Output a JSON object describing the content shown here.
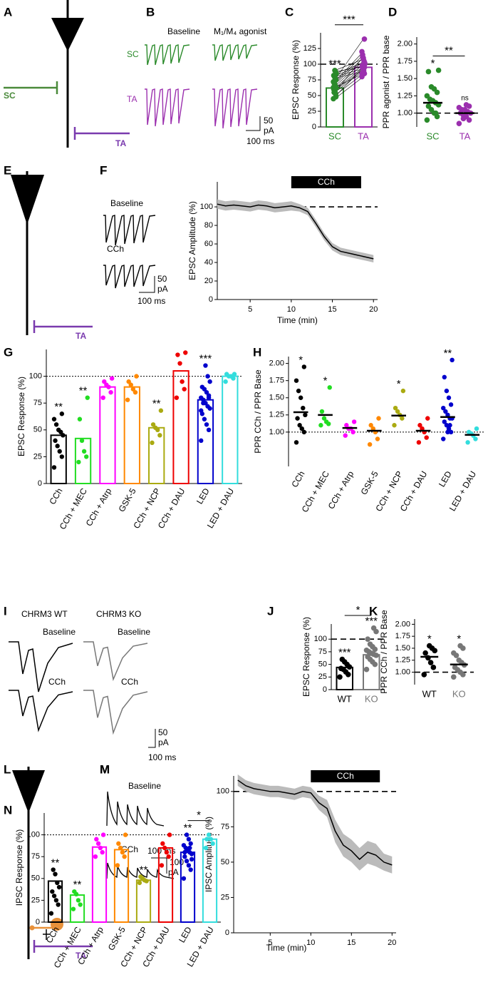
{
  "illustrations": {
    "A": {
      "panel": "A",
      "labels": [
        "SC",
        "TA"
      ]
    },
    "B": {
      "panel": "B",
      "conditions": [
        "Baseline",
        "M₁/M₄ agonist"
      ],
      "rows": [
        "SC",
        "TA"
      ],
      "scale": [
        "50",
        "pA",
        "100 ms"
      ]
    },
    "E": {
      "panel": "E",
      "labels": [
        "TA"
      ]
    },
    "F": {
      "panel": "F",
      "conditions": [
        "Baseline",
        "CCh"
      ],
      "scale": [
        "50",
        "pA",
        "100 ms"
      ]
    },
    "I": {
      "panel": "I",
      "columns": [
        "CHRM3 WT",
        "CHRM3 KO"
      ],
      "conditions": [
        "Baseline",
        "Baseline",
        "CCh",
        "CCh"
      ],
      "scale": [
        "50",
        "pA",
        "100 ms"
      ]
    },
    "L": {
      "panel": "L",
      "labels": [
        "TA"
      ]
    },
    "M": {
      "panel": "M",
      "conditions": [
        "Baseline",
        "CCh"
      ],
      "scale": [
        "100 ms",
        "100",
        "pA"
      ]
    }
  },
  "chart_data": [
    {
      "type": "bar",
      "panel": "C",
      "ylabel": "EPSC Response (%)",
      "categories": [
        "SC",
        "TA"
      ],
      "colors": [
        "#2a8a2a",
        "#9b2fae"
      ],
      "values": [
        62,
        95
      ],
      "ylim": [
        0,
        150
      ],
      "yticks": [
        0,
        25,
        50,
        75,
        100,
        125
      ],
      "reference_line": 100,
      "paired": true,
      "points": [
        [
          45,
          50,
          55,
          58,
          60,
          62,
          65,
          68,
          70,
          72,
          75,
          78,
          80,
          82,
          85,
          88,
          90,
          55,
          63,
          48
        ],
        [
          80,
          85,
          90,
          92,
          95,
          100,
          105,
          110,
          115,
          120,
          140,
          88,
          93,
          98,
          102,
          96,
          108,
          112,
          85,
          95
        ]
      ],
      "annotations": [
        "***",
        null
      ],
      "bracket": {
        "between": [
          0,
          1
        ],
        "label": "***"
      }
    },
    {
      "type": "strip",
      "panel": "D",
      "ylabel": "PPR agonist / PPR base",
      "categories": [
        "SC",
        "TA"
      ],
      "colors": [
        "#2a8a2a",
        "#9b2fae"
      ],
      "values": [
        1.15,
        1.0
      ],
      "ylim": [
        0.8,
        2.1
      ],
      "yticks": [
        {
          "value": 1,
          "label": "1.00"
        },
        {
          "value": 1.25,
          "label": "1.25"
        },
        {
          "value": 1.5,
          "label": "1.50"
        },
        {
          "value": 1.75,
          "label": "1.75"
        },
        {
          "value": 2,
          "label": "2.00"
        }
      ],
      "reference_line": 1,
      "points": [
        [
          0.9,
          0.95,
          1.0,
          1.05,
          1.1,
          1.12,
          1.15,
          1.18,
          1.2,
          1.25,
          1.3,
          1.35,
          1.38,
          1.6,
          1.62,
          1.0
        ],
        [
          0.85,
          0.9,
          0.95,
          0.97,
          1.0,
          1.0,
          1.02,
          1.05,
          1.05,
          1.08,
          1.1,
          1.12,
          0.92
        ]
      ],
      "annotations": [
        "*",
        "ns"
      ],
      "bracket": {
        "between": [
          0,
          1
        ],
        "label": "**"
      }
    },
    {
      "type": "line",
      "panel": "F",
      "ylabel": "EPSC Amplitude (%)",
      "xlabel": "Time (min)",
      "x": [
        1,
        2,
        3,
        4,
        5,
        6,
        7,
        8,
        9,
        10,
        11,
        12,
        13,
        14,
        15,
        16,
        17,
        18,
        19,
        20
      ],
      "series": [
        {
          "color": "#000000",
          "values": [
            103,
            101,
            102,
            101,
            100,
            102,
            101,
            99,
            100,
            101,
            99,
            95,
            82,
            68,
            57,
            52,
            50,
            48,
            46,
            44
          ],
          "error": [
            5,
            5,
            5,
            5,
            5,
            5,
            5,
            5,
            5,
            5,
            4,
            4,
            4,
            4,
            4,
            4,
            4,
            4,
            4,
            4
          ]
        }
      ],
      "xlim": [
        1,
        20.5
      ],
      "xticks": [
        5,
        10,
        15,
        20
      ],
      "ylim": [
        0,
        127
      ],
      "yticks": [
        0,
        20,
        40,
        60,
        80,
        100
      ],
      "reference_line": 100,
      "shaded_interval": {
        "label": "CCh",
        "range": [
          10,
          18.5
        ]
      }
    },
    {
      "type": "bar",
      "panel": "G",
      "ylabel": "EPSC Response (%)",
      "categories": [
        "CCh",
        "CCh + MEC",
        "CCh + Atrp",
        "GSK-5",
        "CCh + NCP",
        "CCh + DAU",
        "LED",
        "LED + DAU"
      ],
      "colors": [
        "#000000",
        "#22dd22",
        "#ff00ff",
        "#ff8800",
        "#aaaa11",
        "#ee0000",
        "#0000cc",
        "#33dddd"
      ],
      "values": [
        45,
        42,
        90,
        90,
        52,
        105,
        78,
        100
      ],
      "ylim": [
        0,
        125
      ],
      "yticks": [
        0,
        25,
        50,
        75,
        100
      ],
      "reference_line": 100,
      "points": [
        [
          15,
          25,
          30,
          35,
          40,
          45,
          48,
          50,
          55,
          60,
          65
        ],
        [
          20,
          25,
          30,
          40,
          60,
          80
        ],
        [
          80,
          85,
          90,
          92,
          95,
          98
        ],
        [
          78,
          85,
          88,
          92,
          95,
          100
        ],
        [
          38,
          45,
          50,
          52,
          55,
          68
        ],
        [
          80,
          88,
          95,
          112,
          120,
          122
        ],
        [
          40,
          50,
          55,
          60,
          65,
          70,
          72,
          75,
          78,
          80,
          82,
          85,
          88,
          90,
          95,
          100,
          110,
          75,
          68,
          80
        ],
        [
          95,
          98,
          100,
          100,
          102,
          102
        ]
      ],
      "annotations": [
        "**",
        "**",
        null,
        null,
        "**",
        null,
        "***",
        null
      ]
    },
    {
      "type": "strip",
      "panel": "H",
      "ylabel": "PPR CCh / PPR Base",
      "categories": [
        "CCh",
        "CCh + MEC",
        "CCh + Atrp",
        "GSK-5",
        "CCh + NCP",
        "CCh + DAU",
        "LED",
        "LED + DAU"
      ],
      "colors": [
        "#000000",
        "#22dd22",
        "#ff00ff",
        "#ff8800",
        "#aaaa11",
        "#ee0000",
        "#0000cc",
        "#33dddd"
      ],
      "values": [
        1.29,
        1.25,
        1.06,
        1.02,
        1.24,
        1.02,
        1.22,
        0.96
      ],
      "ylim": [
        0.5,
        2.1
      ],
      "yticks": [
        {
          "value": 1,
          "label": "1.00"
        },
        {
          "value": 1.25,
          "label": "1.25"
        },
        {
          "value": 1.5,
          "label": "1.50"
        },
        {
          "value": 1.75,
          "label": "1.75"
        },
        {
          "value": 2,
          "label": "2.00"
        }
      ],
      "reference_line": 1,
      "points": [
        [
          0.85,
          1.0,
          1.05,
          1.1,
          1.2,
          1.25,
          1.35,
          1.5,
          1.6,
          1.75,
          1.95
        ],
        [
          1.1,
          1.12,
          1.15,
          1.2,
          1.3,
          1.65
        ],
        [
          0.95,
          1.0,
          1.05,
          1.05,
          1.1,
          1.15
        ],
        [
          0.82,
          0.9,
          1.0,
          1.05,
          1.1,
          1.2
        ],
        [
          1.1,
          1.2,
          1.25,
          1.3,
          1.35,
          1.6
        ],
        [
          0.85,
          0.92,
          1.0,
          1.05,
          1.1,
          1.2
        ],
        [
          0.9,
          1.0,
          1.05,
          1.1,
          1.15,
          1.2,
          1.2,
          1.25,
          1.3,
          1.35,
          1.4,
          1.5,
          1.6,
          1.8,
          2.05,
          1.1,
          1.0
        ],
        [
          0.85,
          0.9,
          0.95,
          0.98,
          1.0,
          1.05
        ]
      ],
      "annotations": [
        "*",
        "*",
        null,
        null,
        "*",
        null,
        "**",
        null
      ]
    },
    {
      "type": "bar",
      "panel": "J",
      "ylabel": "EPSC Response (%)",
      "categories": [
        "WT",
        "KO"
      ],
      "colors": [
        "#000000",
        "#777777"
      ],
      "values": [
        44,
        69
      ],
      "ylim": [
        0,
        130
      ],
      "yticks": [
        0,
        25,
        50,
        75,
        100
      ],
      "reference_line": 100,
      "points": [
        [
          25,
          30,
          35,
          40,
          42,
          45,
          50,
          55,
          60
        ],
        [
          40,
          50,
          55,
          60,
          65,
          68,
          70,
          72,
          75,
          78,
          80,
          85,
          90,
          100,
          115,
          122
        ]
      ],
      "annotations": [
        "***",
        "***"
      ],
      "bracket": {
        "between": [
          0,
          1
        ],
        "label": "*"
      }
    },
    {
      "type": "strip",
      "panel": "K",
      "ylabel": "PPR CCh / PPR Base",
      "categories": [
        "WT",
        "KO"
      ],
      "colors": [
        "#000000",
        "#777777"
      ],
      "values": [
        1.32,
        1.16
      ],
      "ylim": [
        0.74,
        2.11
      ],
      "yticks": [
        {
          "value": 1,
          "label": "1.00"
        },
        {
          "value": 1.25,
          "label": "1.25"
        },
        {
          "value": 1.5,
          "label": "1.50"
        },
        {
          "value": 1.75,
          "label": "1.75"
        },
        {
          "value": 2,
          "label": "2.00"
        }
      ],
      "reference_line": 1,
      "points": [
        [
          0.95,
          1.1,
          1.2,
          1.3,
          1.4,
          1.45,
          1.5,
          1.55
        ],
        [
          0.9,
          0.95,
          1.0,
          1.05,
          1.1,
          1.15,
          1.2,
          1.25,
          1.35,
          1.4,
          1.5,
          1.55
        ]
      ],
      "annotations": [
        "*",
        "*"
      ]
    },
    {
      "type": "line",
      "panel": "M",
      "ylabel": "IPSC Amplitude (%)",
      "xlabel": "Time (min)",
      "x": [
        1,
        2,
        3,
        4,
        5,
        6,
        7,
        8,
        9,
        10,
        11,
        12,
        13,
        14,
        15,
        16,
        17,
        18,
        19,
        20
      ],
      "series": [
        {
          "color": "#000000",
          "values": [
            108,
            104,
            102,
            101,
            100,
            100,
            99,
            98,
            100,
            99,
            92,
            88,
            72,
            62,
            58,
            52,
            57,
            55,
            50,
            48
          ],
          "error": [
            4,
            4,
            4,
            4,
            4,
            4,
            4,
            4,
            4,
            4,
            5,
            6,
            8,
            8,
            8,
            8,
            8,
            8,
            6,
            6
          ]
        }
      ],
      "xlim": [
        0.5,
        20.5
      ],
      "xticks": [
        5,
        10,
        15,
        20
      ],
      "ylim": [
        0,
        111
      ],
      "yticks": [
        0,
        25,
        50,
        75,
        100
      ],
      "reference_line": 100,
      "shaded_interval": {
        "label": "CCh",
        "range": [
          10,
          18.5
        ]
      }
    },
    {
      "type": "bar",
      "panel": "N",
      "ylabel": "IPSC Response (%)",
      "categories": [
        "CCh",
        "CCh + MEC",
        "CCh + Atrp",
        "GSK-5",
        "CCh + NCP",
        "CCh + DAU",
        "LED",
        "LED + DAU"
      ],
      "colors": [
        "#000000",
        "#22dd22",
        "#ff00ff",
        "#ff8800",
        "#aaaa11",
        "#ee0000",
        "#0000cc",
        "#33dddd"
      ],
      "values": [
        47,
        31,
        86,
        83,
        48,
        85,
        80,
        95
      ],
      "ylim": [
        0,
        125
      ],
      "yticks": [
        0,
        25,
        50,
        75,
        100
      ],
      "reference_line": 100,
      "points": [
        [
          10,
          20,
          25,
          30,
          35,
          40,
          45,
          55,
          60
        ],
        [
          15,
          20,
          25,
          32,
          35
        ],
        [
          75,
          80,
          85,
          90,
          95,
          100
        ],
        [
          65,
          75,
          80,
          85,
          90,
          100
        ],
        [
          45,
          47,
          48,
          50,
          52
        ],
        [
          65,
          75,
          80,
          85,
          90,
          100
        ],
        [
          50,
          60,
          65,
          70,
          75,
          78,
          80,
          82,
          85,
          88,
          90,
          95,
          100,
          80,
          72,
          85
        ],
        [
          85,
          90,
          95,
          100,
          95
        ]
      ],
      "annotations": [
        "**",
        "**",
        null,
        null,
        "**",
        null,
        "**",
        null
      ],
      "bracket": {
        "between": [
          6,
          7
        ],
        "label": "*"
      }
    }
  ]
}
